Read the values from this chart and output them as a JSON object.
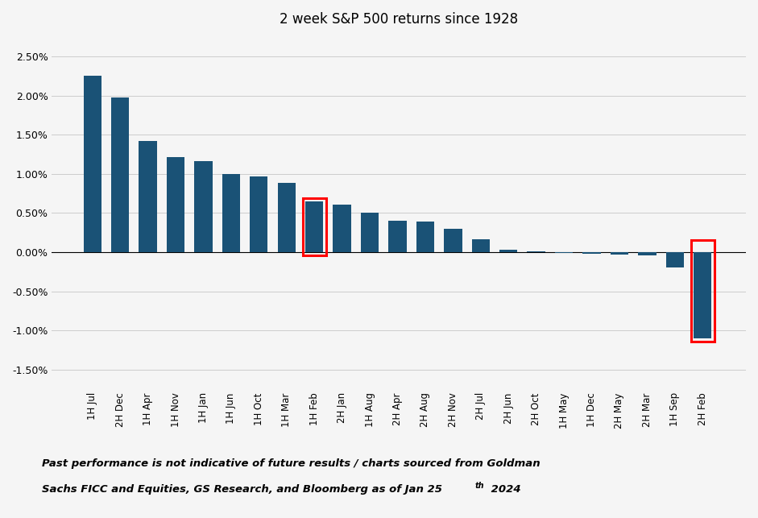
{
  "title": "2 week S&P 500 returns since 1928",
  "categories": [
    "1H Jul",
    "2H Dec",
    "1H Apr",
    "1H Nov",
    "1H Jan",
    "1H Jun",
    "1H Oct",
    "1H Mar",
    "1H Feb",
    "2H Jan",
    "1H Aug",
    "2H Apr",
    "2H Aug",
    "2H Nov",
    "2H Jul",
    "2H Jun",
    "2H Oct",
    "1H May",
    "1H Dec",
    "2H May",
    "2H Mar",
    "1H Sep",
    "2H Feb"
  ],
  "values": [
    2.25,
    1.97,
    1.42,
    1.21,
    1.16,
    1.0,
    0.97,
    0.88,
    0.65,
    0.61,
    0.5,
    0.4,
    0.39,
    0.3,
    0.16,
    0.03,
    0.01,
    -0.01,
    -0.02,
    -0.03,
    -0.04,
    -0.2,
    -1.1
  ],
  "bar_color": "#1a5276",
  "highlight_indices": [
    8,
    22
  ],
  "highlight_color": "red",
  "ylim": [
    -1.75,
    2.75
  ],
  "yticks": [
    -1.5,
    -1.0,
    -0.5,
    0.0,
    0.5,
    1.0,
    1.5,
    2.0,
    2.5
  ],
  "footnote_line1": "Past performance is not indicative of future results / charts sourced from Goldman",
  "footnote_line2": "Sachs FICC and Equities, GS Research, and Bloomberg as of Jan 25",
  "footnote_superscript": "th",
  "footnote_year": " 2024",
  "background_color": "#f5f5f5",
  "grid_color": "#cccccc"
}
